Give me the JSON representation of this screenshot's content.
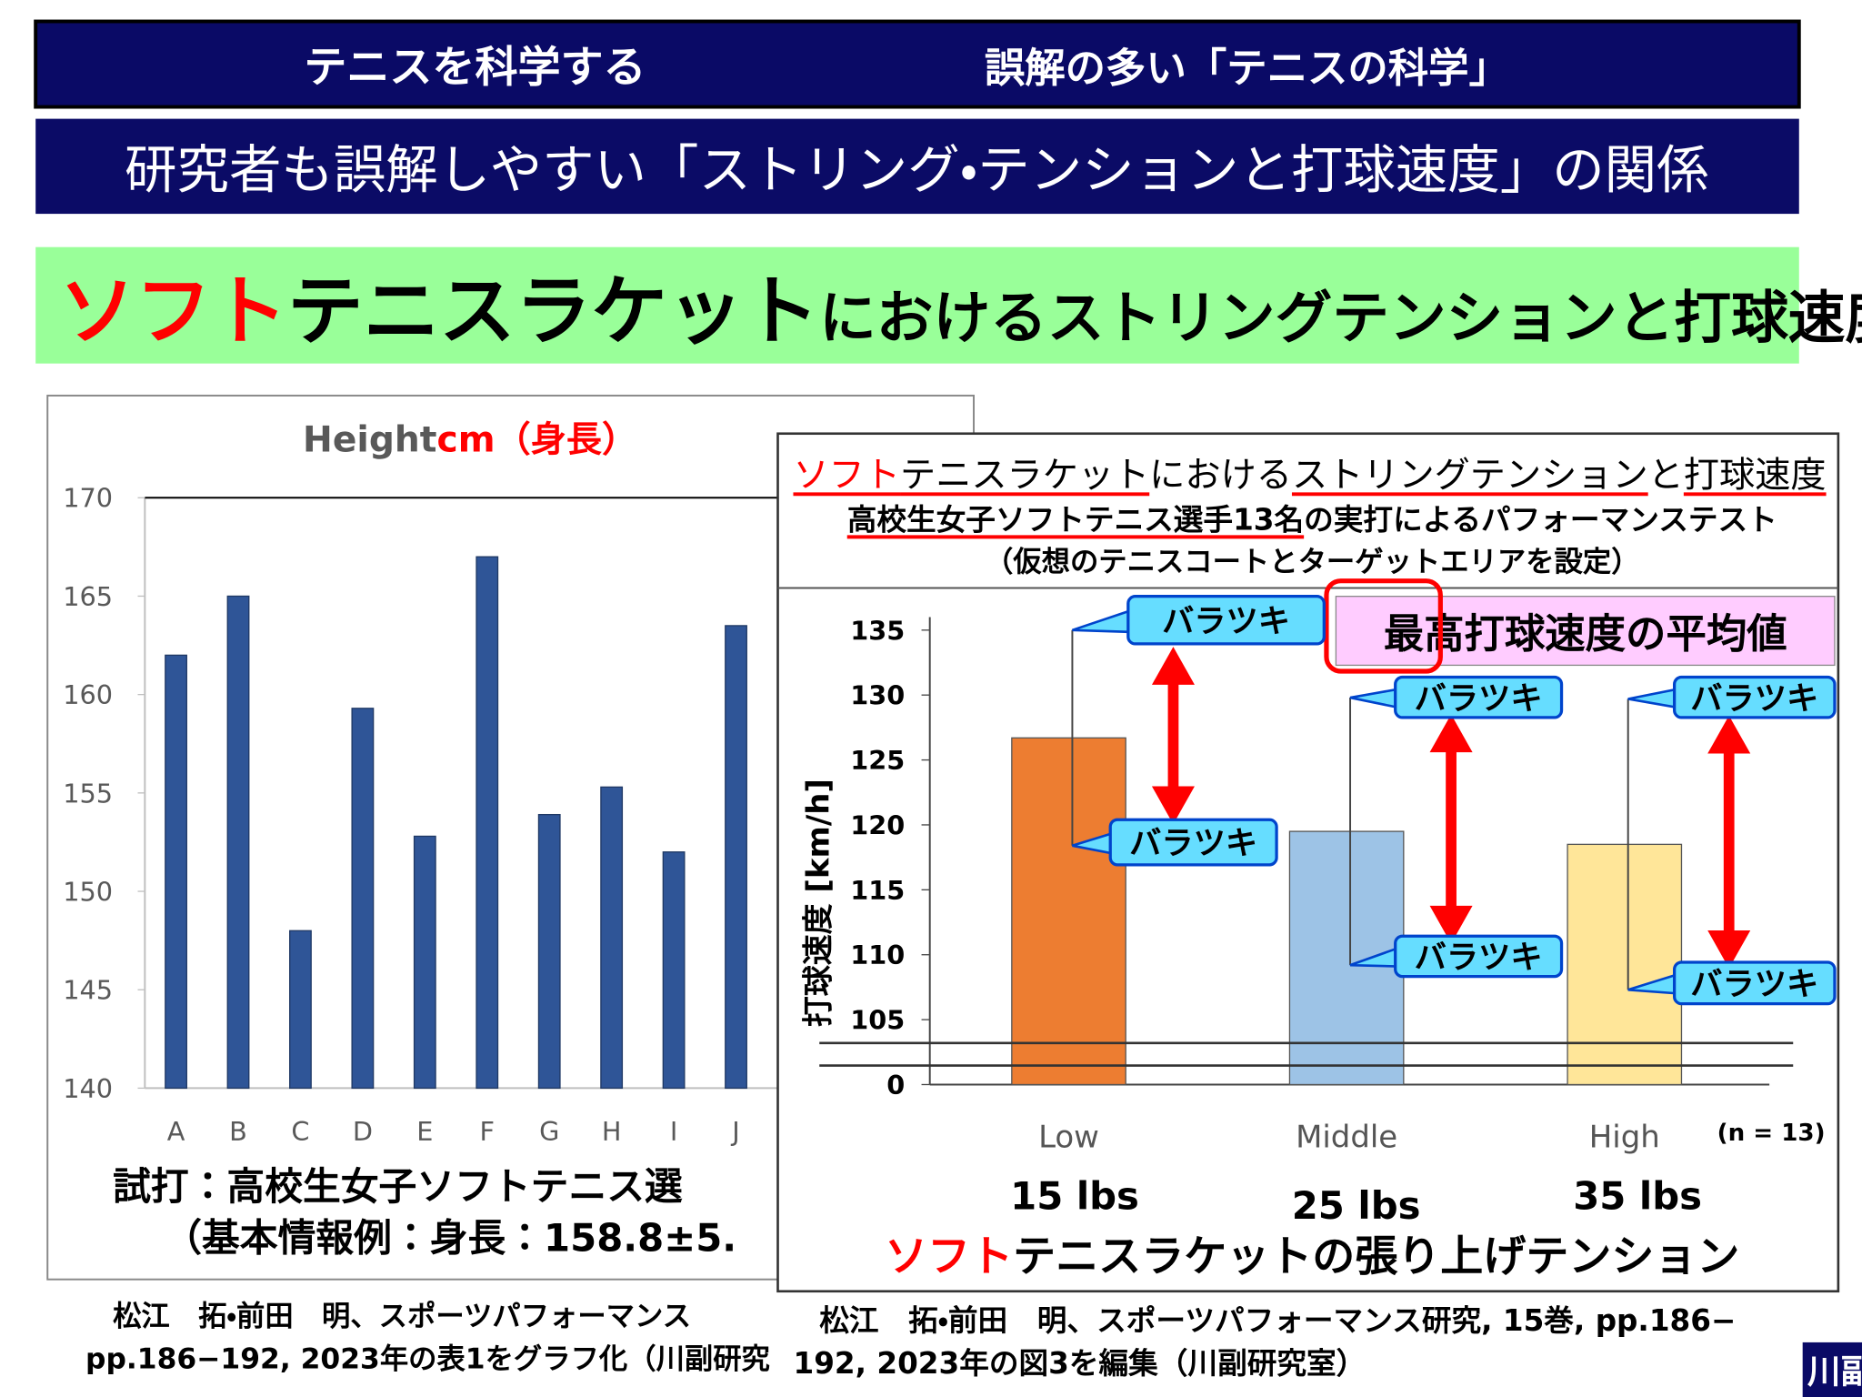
{
  "header": {
    "left": "テニスを科学する",
    "right": "誤解の多い「テニスの科学」"
  },
  "subheader": "研究者も誤解しやすい「ストリング・テンションと打球速度」の関係",
  "banner": {
    "red": "ソフト",
    "large": "テニスラケット",
    "rest": "におけるストリングテンションと打球速度"
  },
  "chart_data": [
    {
      "type": "bar",
      "title": "Height",
      "title_unit": "cm",
      "title_note": "（身長）",
      "categories": [
        "A",
        "B",
        "C",
        "D",
        "E",
        "F",
        "G",
        "H",
        "I",
        "J"
      ],
      "values": [
        162,
        165,
        148,
        159.3,
        152.8,
        167,
        153.9,
        155.3,
        152,
        163.5
      ],
      "color": "#2f5597",
      "ylim": [
        140,
        170
      ],
      "yticks": [
        140,
        145,
        150,
        155,
        160,
        165,
        170
      ]
    },
    {
      "type": "bar_error",
      "title_parts": [
        "ソフト",
        "テニスラケット",
        "における",
        "ストリングテンション",
        "と",
        "打球速度"
      ],
      "subtitle_parts": [
        "高校生女子ソフトテニス選手13名",
        "の実打によるパフォーマンステスト"
      ],
      "subtitle2": "（仮想のテニスコートとターゲットエリアを設定）",
      "categories": [
        "Low",
        "Middle",
        "High"
      ],
      "tensions": [
        "15 lbs",
        "25  lbs",
        "35  lbs"
      ],
      "values": [
        126.7,
        119.5,
        118.5
      ],
      "errors": [
        8.3,
        10.3,
        11.2
      ],
      "colors": [
        "#ed7d31",
        "#9dc3e6",
        "#ffe699"
      ],
      "ylim": [
        0,
        136
      ],
      "yticks": [
        0,
        105,
        110,
        115,
        120,
        125,
        130,
        135
      ],
      "axis_break": true,
      "y_label": "打球速度 [km/h]",
      "note": "(n = 13)",
      "x_title_parts": [
        "ソフト",
        "テニスラケットの張り上げテンション"
      ],
      "annotations": [
        "バラツキ",
        "バラツキ",
        "バラツキ",
        "バラツキ",
        "バラツキ",
        "バラツキ"
      ],
      "highlight": "最高打球速度の平均値"
    }
  ],
  "left_caption": [
    "試打：高校生女子ソフトテニス選",
    "（基本情報例：身長：158.8±5."
  ],
  "left_citation": [
    "松江　拓・前田　明、スポーツパフォーマンス",
    "pp.186−192, 2023年の表1をグラフ化（川副研究"
  ],
  "right_citation": [
    "松江　拓・前田　明、スポーツパフォーマンス研究, 15巻, pp.186−",
    "192, 2023年の図3を編集（川副研究室）"
  ],
  "corner": "川副"
}
